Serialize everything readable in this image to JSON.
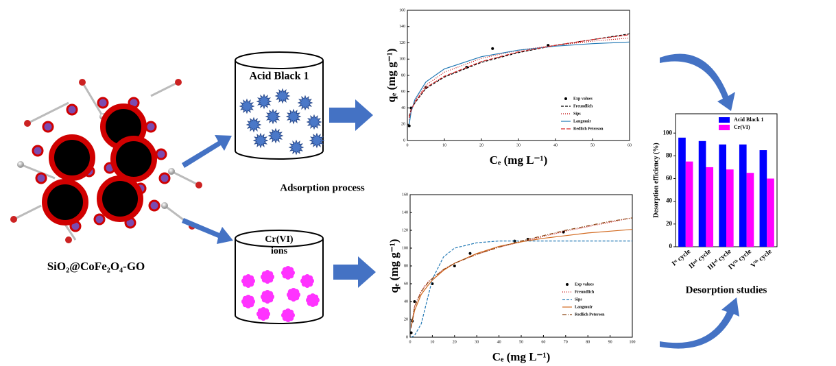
{
  "labels": {
    "composite": "SiO₂@CoFe₂O₄-GO",
    "dye": "Acid Black 1",
    "metal": [
      "Cr(VI)",
      "ions"
    ],
    "process": "Adsorption process"
  },
  "chart_data": [
    {
      "type": "line",
      "x_label": "Cₑ (mg L⁻¹)",
      "y_label": "qₑ (mg g⁻¹)",
      "xlim": [
        0,
        60
      ],
      "xticks": [
        0,
        10,
        20,
        30,
        40,
        50,
        60
      ],
      "ylim": [
        0,
        160
      ],
      "yticks": [
        0,
        20,
        40,
        60,
        80,
        100,
        120,
        140,
        160
      ],
      "series": [
        {
          "name": "Exp values",
          "color": "#000000",
          "marker": "dot",
          "x": [
            0.5,
            1,
            5,
            16,
            23,
            38
          ],
          "values": [
            18,
            40,
            65,
            90,
            113,
            117
          ]
        },
        {
          "name": "Freundlich",
          "color": "#000000",
          "style": "dashed",
          "x": [
            0.5,
            1,
            2,
            5,
            10,
            20,
            30,
            40,
            50,
            60
          ],
          "values": [
            30,
            38,
            46,
            64,
            78,
            96,
            108,
            117,
            124,
            131
          ]
        },
        {
          "name": "Sips",
          "color": "#c00000",
          "style": "dotted",
          "x": [
            0.5,
            1,
            2,
            5,
            10,
            20,
            30,
            40,
            50,
            60
          ],
          "values": [
            25,
            36,
            48,
            68,
            84,
            101,
            111,
            117,
            122,
            126
          ]
        },
        {
          "name": "Langmuir",
          "color": "#1f77b4",
          "style": "solid",
          "x": [
            0.5,
            1,
            2,
            5,
            10,
            20,
            30,
            40,
            50,
            60
          ],
          "values": [
            20,
            35,
            50,
            72,
            88,
            103,
            111,
            116,
            119,
            121
          ]
        },
        {
          "name": "Redlich Peterson",
          "color": "#d62728",
          "style": "longdash",
          "x": [
            0.5,
            1,
            2,
            5,
            10,
            20,
            30,
            40,
            50,
            60
          ],
          "values": [
            28,
            37,
            47,
            65,
            79,
            97,
            109,
            117,
            124,
            130
          ]
        }
      ]
    },
    {
      "type": "line",
      "x_label": "Cₑ (mg L⁻¹)",
      "y_label": "qₑ (mg g⁻¹)",
      "xlim": [
        0,
        100
      ],
      "xticks": [
        0,
        10,
        20,
        30,
        40,
        50,
        60,
        70,
        80,
        90,
        100
      ],
      "ylim": [
        0,
        160
      ],
      "yticks": [
        0,
        20,
        40,
        60,
        80,
        100,
        120,
        140,
        160
      ],
      "series": [
        {
          "name": "Exp values",
          "color": "#000000",
          "marker": "dot",
          "x": [
            0.5,
            1,
            2,
            10,
            20,
            27,
            47,
            53,
            69
          ],
          "values": [
            5,
            18,
            40,
            60,
            80,
            94,
            108,
            110,
            118
          ]
        },
        {
          "name": "Freundlich",
          "color": "#c00000",
          "style": "dotted",
          "x": [
            0.5,
            2,
            5,
            8,
            10,
            15,
            20,
            30,
            40,
            50,
            60,
            70,
            80,
            90,
            100
          ],
          "values": [
            10,
            35,
            52,
            62,
            66,
            76,
            83,
            93,
            101,
            107,
            113,
            119,
            124,
            129,
            134
          ]
        },
        {
          "name": "Sips",
          "color": "#1f77b4",
          "style": "dashed",
          "x": [
            0.5,
            2,
            5,
            8,
            10,
            15,
            20,
            30,
            40,
            50,
            60,
            70,
            80,
            90,
            100
          ],
          "values": [
            0,
            2,
            15,
            45,
            65,
            90,
            100,
            106,
            108,
            108,
            108,
            108,
            108,
            108,
            108
          ]
        },
        {
          "name": "Langmuir",
          "color": "#d2691e",
          "style": "solid",
          "x": [
            0.5,
            2,
            5,
            8,
            10,
            15,
            20,
            30,
            40,
            50,
            60,
            70,
            80,
            90,
            100
          ],
          "values": [
            12,
            30,
            48,
            58,
            64,
            75,
            83,
            94,
            102,
            107,
            111,
            114,
            117,
            119,
            121
          ]
        },
        {
          "name": "Redlich Peterson",
          "color": "#8b4513",
          "style": "dashdot",
          "x": [
            0.5,
            2,
            5,
            8,
            10,
            15,
            20,
            30,
            40,
            50,
            60,
            70,
            80,
            90,
            100
          ],
          "values": [
            11,
            34,
            51,
            61,
            66,
            76,
            83,
            93,
            101,
            108,
            114,
            120,
            125,
            130,
            134
          ]
        }
      ]
    },
    {
      "type": "bar",
      "x_label": "Desorption studies",
      "y_label": "Desorption efficiency (%)",
      "categories": [
        "Iˢᵗ cycle",
        "IIⁿᵈ cycle",
        "IIIʳᵈ cycle",
        "IVᵗʰ cycle",
        "Vᵗʰ cycle"
      ],
      "ylim": [
        0,
        117
      ],
      "yticks": [
        0,
        20,
        40,
        60,
        80,
        100
      ],
      "series": [
        {
          "name": "Acid Black 1",
          "color": "#0000ff",
          "values": [
            96,
            93,
            90,
            90,
            85
          ]
        },
        {
          "name": "Cr(VI)",
          "color": "#ff00ff",
          "values": [
            75,
            70,
            68,
            65,
            60
          ]
        }
      ]
    }
  ]
}
